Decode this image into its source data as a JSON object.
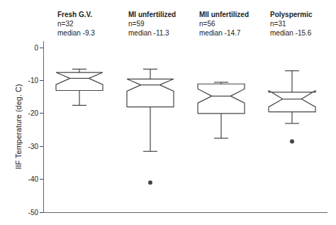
{
  "chart_data": {
    "type": "box",
    "ylabel": "IIF Temperature (deg. C)",
    "ylim": [
      -50,
      2
    ],
    "yticks": [
      0,
      -10,
      -20,
      -30,
      -40,
      -50
    ],
    "grid": false,
    "tick_labels": "y",
    "color": "#444444",
    "boxes": [
      {
        "label": "Fresh G.V.",
        "n": 32,
        "median": -9.3,
        "q1": -13.0,
        "q3": -7.5,
        "whisker_low": -17.5,
        "whisker_high": -6.5,
        "notch_low": -11.2,
        "notch_high": -7.5,
        "outliers": [],
        "annotations": [
          "n=32",
          "median -9.3"
        ]
      },
      {
        "label": "MI unfertilized",
        "n": 59,
        "median": -11.3,
        "q1": -18.0,
        "q3": -9.5,
        "whisker_low": -31.5,
        "whisker_high": -6.5,
        "notch_low": -13.2,
        "notch_high": -9.5,
        "outliers": [
          -41.0
        ],
        "annotations": [
          "n=59",
          "median -11.3"
        ]
      },
      {
        "label": "MII unfertilized",
        "n": 56,
        "median": -14.7,
        "q1": -20.0,
        "q3": -11.0,
        "whisker_low": -27.5,
        "whisker_high": -10.5,
        "notch_low": -16.8,
        "notch_high": -12.5,
        "outliers": [],
        "annotations": [
          "n=56",
          "median -14.7"
        ]
      },
      {
        "label": "Polyspermic",
        "n": 31,
        "median": -15.6,
        "q1": -19.5,
        "q3": -13.5,
        "whisker_low": -23.0,
        "whisker_high": -7.0,
        "notch_low": -18.0,
        "notch_high": -13.0,
        "outliers": [
          -28.5
        ],
        "annotations": [
          "n=31",
          "median -15.6"
        ]
      }
    ]
  }
}
